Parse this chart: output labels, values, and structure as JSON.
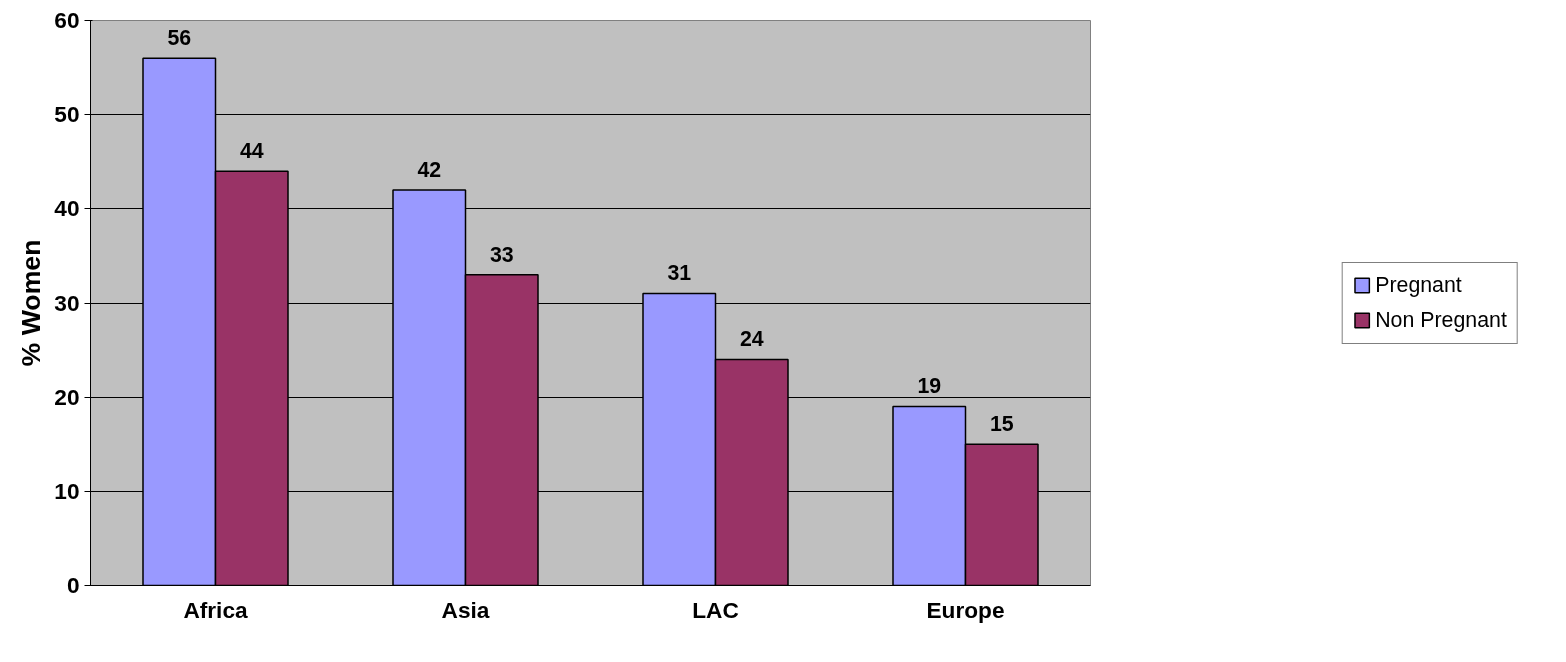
{
  "chart_data": {
    "type": "bar",
    "ylabel": "% Women",
    "categories": [
      "Africa",
      "Asia",
      "LAC",
      "Europe"
    ],
    "series": [
      {
        "name": "Pregnant",
        "color": "#9999ff",
        "values": [
          56,
          42,
          31,
          19
        ]
      },
      {
        "name": "Non Pregnant",
        "color": "#993366",
        "values": [
          44,
          33,
          24,
          15
        ]
      }
    ],
    "ylim": [
      0,
      60
    ],
    "yticks": [
      0,
      10,
      20,
      30,
      40,
      50,
      60
    ],
    "grid": "y",
    "legend": "right",
    "data_labels": true
  }
}
